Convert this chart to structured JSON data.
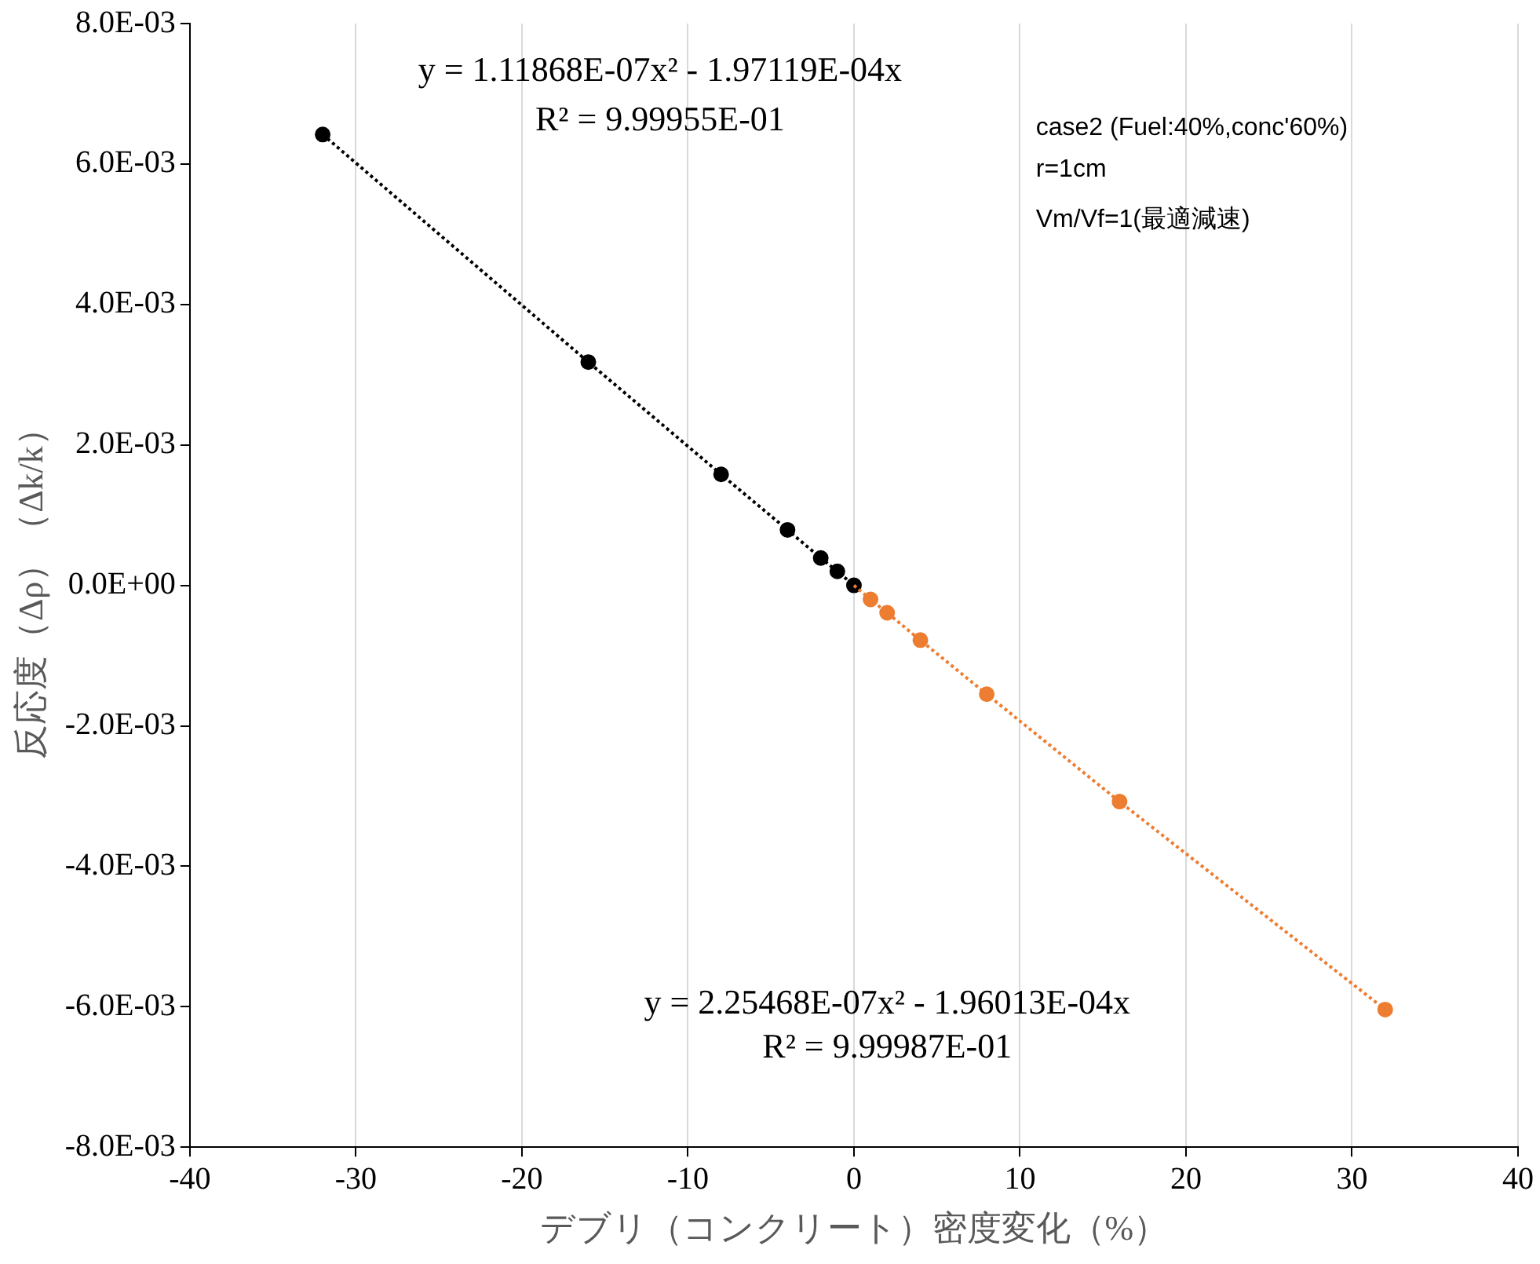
{
  "chart_data": {
    "type": "scatter",
    "xlabel": "デブリ（コンクリート）密度変化（%）",
    "ylabel": "反応度（Δρ）（Δk/k）",
    "xlim": [
      -40,
      40
    ],
    "xticks": [
      -40,
      -30,
      -20,
      -10,
      0,
      10,
      20,
      30,
      40
    ],
    "ylim": [
      -0.008,
      0.008
    ],
    "yticks": [
      {
        "value": -0.008,
        "label": "-8.0E-03"
      },
      {
        "value": -0.006,
        "label": "-6.0E-03"
      },
      {
        "value": -0.004,
        "label": "-4.0E-03"
      },
      {
        "value": -0.002,
        "label": "-2.0E-03"
      },
      {
        "value": 0,
        "label": "0.0E+00"
      },
      {
        "value": 0.002,
        "label": "2.0E-03"
      },
      {
        "value": 0.004,
        "label": "4.0E-03"
      },
      {
        "value": 0.006,
        "label": "6.0E-03"
      },
      {
        "value": 0.008,
        "label": "8.0E-03"
      }
    ],
    "grid": "x",
    "legend": false,
    "marker": "circle",
    "series": [
      {
        "type": "line",
        "line_style": "dotted",
        "marker": "none",
        "color": "#000000",
        "x": [
          -32,
          -16,
          -8,
          -4,
          -2,
          -1,
          0
        ],
        "values": [
          0.00642,
          0.00318,
          0.00158,
          0.00079,
          0.00039,
          0.0002,
          0
        ]
      },
      {
        "type": "line",
        "line_style": "dotted",
        "marker": "none",
        "color": "#ed7d31",
        "x": [
          0,
          1,
          2,
          4,
          8,
          16,
          32
        ],
        "values": [
          0,
          -0.0002,
          -0.00039,
          -0.00078,
          -0.00155,
          -0.00308,
          -0.00604
        ]
      },
      {
        "type": "scatter",
        "color": "#000000",
        "x": [
          -32,
          -16,
          -8,
          -4,
          -2,
          -1,
          0
        ],
        "values": [
          0.00642,
          0.00318,
          0.00158,
          0.00079,
          0.00039,
          0.0002,
          0
        ]
      },
      {
        "type": "scatter",
        "color": "#ed7d31",
        "x": [
          1,
          2,
          4,
          8,
          16,
          32
        ],
        "values": [
          -0.0002,
          -0.00039,
          -0.00078,
          -0.00155,
          -0.00308,
          -0.00604
        ]
      }
    ],
    "annotations": [
      "y = 1.11868E-07x² - 1.97119E-04x",
      "R² = 9.99955E-01",
      "case2 (Fuel:40%,conc'60%)",
      "r=1cm",
      "Vm/Vf=1(最適減速)",
      "y = 2.25468E-07x² - 1.96013E-04x",
      "R² = 9.99987E-01"
    ]
  }
}
